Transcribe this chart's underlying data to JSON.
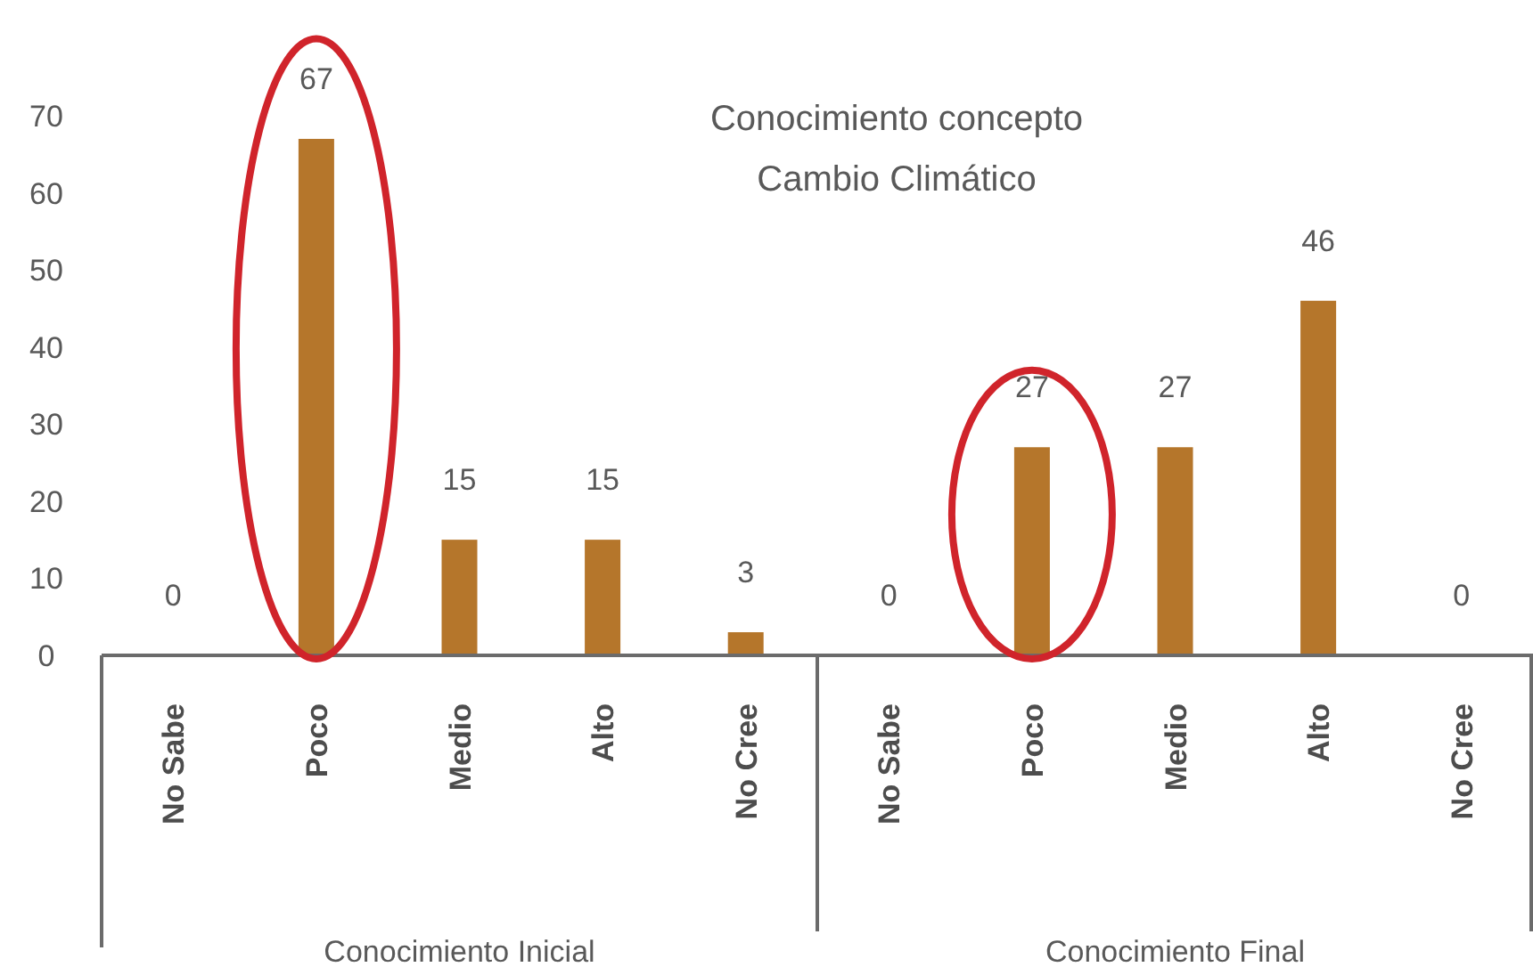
{
  "chart_data": {
    "type": "bar",
    "title": "Conocimiento concepto Cambio Climático",
    "categories": [
      "No Sabe",
      "Poco",
      "Medio",
      "Alto",
      "No Cree",
      "No Sabe",
      "Poco",
      "Medio",
      "Alto",
      "No Cree"
    ],
    "values": [
      0,
      67,
      15,
      15,
      3,
      0,
      27,
      27,
      46,
      0
    ],
    "color": "#b5762b",
    "ylim": [
      0,
      70
    ],
    "yticks": [
      0,
      10,
      20,
      30,
      40,
      50,
      60,
      70
    ],
    "data_labels": true,
    "grid": false,
    "annotations": [
      "Conocimiento Inicial",
      "Conocimiento Final"
    ]
  }
}
